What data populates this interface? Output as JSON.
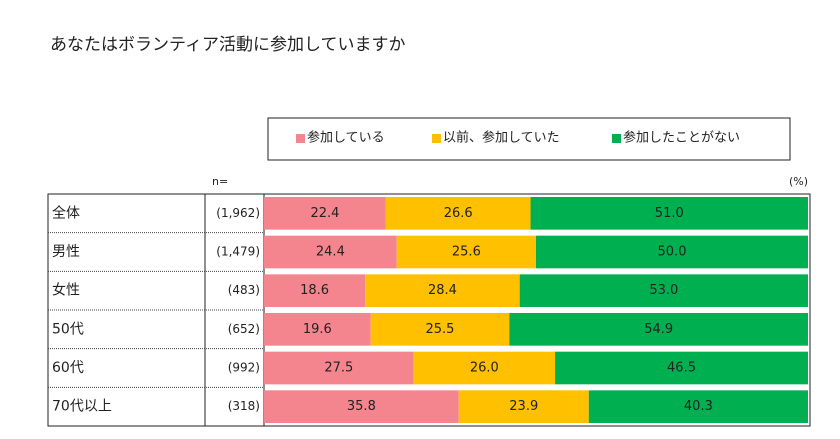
{
  "chart_data": {
    "type": "stacked-bar-horizontal",
    "title": "あなたはボランティア活動に参加していますか",
    "n_header": "n=",
    "unit_label": "(%)",
    "categories": [
      "全体",
      "男性",
      "女性",
      "50代",
      "60代",
      "70代以上"
    ],
    "sample_sizes": [
      "(1,962)",
      "(1,479)",
      "(483)",
      "(652)",
      "(992)",
      "(318)"
    ],
    "xlim": [
      0,
      100
    ],
    "series": [
      {
        "name": "参加している",
        "color": "#f4858e",
        "values": [
          22.4,
          24.4,
          18.6,
          19.6,
          27.5,
          35.8
        ],
        "value_labels": [
          "22.4",
          "24.4",
          "18.6",
          "19.6",
          "27.5",
          "35.8"
        ]
      },
      {
        "name": "以前、参加していた",
        "color": "#ffc000",
        "values": [
          26.6,
          25.6,
          28.4,
          25.5,
          26.0,
          23.9
        ],
        "value_labels": [
          "26.6",
          "25.6",
          "28.4",
          "25.5",
          "26.0",
          "23.9"
        ]
      },
      {
        "name": "参加したことがない",
        "color": "#00b050",
        "values": [
          51.0,
          50.0,
          53.0,
          54.9,
          46.5,
          40.3
        ],
        "value_labels": [
          "51.0",
          "50.0",
          "53.0",
          "54.9",
          "46.5",
          "40.3"
        ]
      }
    ]
  }
}
